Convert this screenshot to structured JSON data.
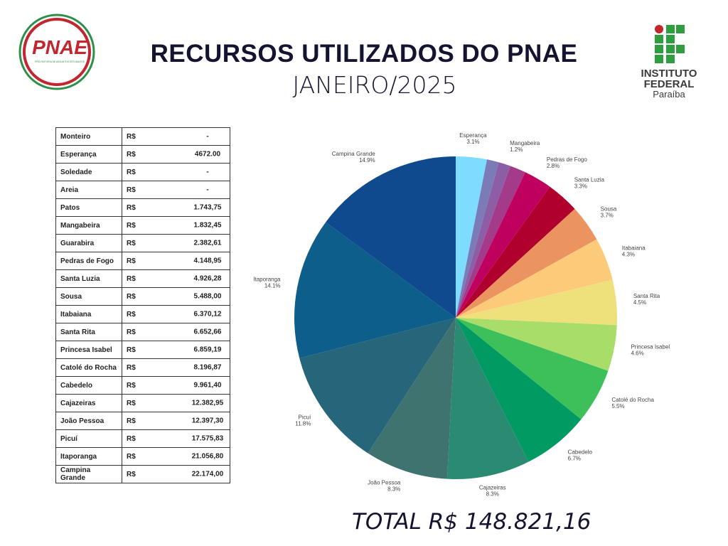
{
  "header": {
    "title": "RECURSOS UTILIZADOS DO PNAE",
    "subtitle": "JANEIRO/2025",
    "left_logo": {
      "text": "PNAE",
      "caption": "PRÓ-REITORIA DE ASSUNTOS ESTUDANTIS"
    },
    "right_logo": {
      "line1": "INSTITUTO",
      "line2": "FEDERAL",
      "line3": "Paraíba"
    }
  },
  "table": {
    "rows": [
      [
        "Monteiro",
        "R$",
        "-"
      ],
      [
        "Esperança",
        "R$",
        "4672.00"
      ],
      [
        "Soledade",
        "R$",
        "-"
      ],
      [
        "Areia",
        "R$",
        "-"
      ],
      [
        "Patos",
        "R$",
        "1.743,75"
      ],
      [
        "Mangabeira",
        "R$",
        "1.832,45"
      ],
      [
        "Guarabira",
        "R$",
        "2.382,61"
      ],
      [
        "Pedras de Fogo",
        "R$",
        "4.148,95"
      ],
      [
        "Santa Luzia",
        "R$",
        "4.926,28"
      ],
      [
        "Sousa",
        "R$",
        "5.488,00"
      ],
      [
        "Itabaiana",
        "R$",
        "6.370,12"
      ],
      [
        "Santa Rita",
        "R$",
        "6.652,66"
      ],
      [
        "Princesa Isabel",
        "R$",
        "6.859,19"
      ],
      [
        "Catolé do Rocha",
        "R$",
        "8.196,87"
      ],
      [
        "Cabedelo",
        "R$",
        "9.961,40"
      ],
      [
        "Cajazeiras",
        "R$",
        "12.382,95"
      ],
      [
        "João Pessoa",
        "R$",
        "12.397,30"
      ],
      [
        "Picuí",
        "R$",
        "17.575,83"
      ],
      [
        "Itaporanga",
        "R$",
        "21.056,80"
      ],
      [
        "Campina Grande",
        "R$",
        "22.174,00"
      ]
    ]
  },
  "total": "TOTAL  R$ 148.821,16",
  "chart_data": {
    "type": "pie",
    "categories": [
      "Esperança",
      null,
      "Mangabeira",
      null,
      "Pedras de Fogo",
      "Santa Luzia",
      "Sousa",
      "Itabaiana",
      "Santa Rita",
      "Princesa Isabel",
      "Catolé do Rocha",
      "Cabedelo",
      "Cajazeiras",
      "João Pessoa",
      "Picuí",
      "Itaporanga",
      "Campina Grande"
    ],
    "values": [
      3.1,
      1.2,
      1.2,
      1.6,
      2.8,
      3.3,
      3.7,
      4.3,
      4.5,
      4.6,
      5.5,
      6.7,
      8.3,
      8.3,
      11.8,
      14.1,
      14.9
    ],
    "value_labels": [
      "3.1%",
      null,
      "1.2%",
      null,
      "2.8%",
      "3.3%",
      "3.7%",
      "4.3%",
      "4.5%",
      "4.6%",
      "5.5%",
      "6.7%",
      "8.3%",
      "8.3%",
      "11.8%",
      "14.1%",
      "14.9%"
    ],
    "colors": [
      "#7ddcff",
      "#7b7bb8",
      "#8b5ea6",
      "#a33a8a",
      "#c0005e",
      "#b0002e",
      "#ec9460",
      "#fccb7a",
      "#eee17c",
      "#a8dd6a",
      "#3dc05a",
      "#019a63",
      "#2a8a72",
      "#3e7370",
      "#27667a",
      "#0d5e8a",
      "#0f4a8f"
    ]
  }
}
